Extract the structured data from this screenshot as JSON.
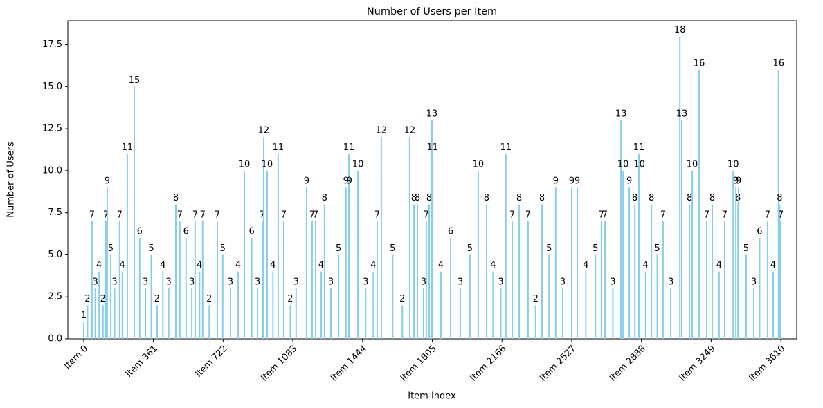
{
  "chart_data": {
    "type": "bar",
    "title": "Number of Users per Item",
    "xlabel": "Item Index",
    "ylabel": "Number of Users",
    "color": "#87ceeb",
    "x": [
      0,
      20,
      43,
      60,
      80,
      100,
      115,
      122,
      140,
      160,
      186,
      200,
      226,
      262,
      290,
      320,
      350,
      380,
      410,
      440,
      477,
      498,
      530,
      560,
      577,
      600,
      616,
      650,
      692,
      720,
      760,
      800,
      832,
      870,
      900,
      925,
      932,
      950,
      980,
      1007,
      1036,
      1070,
      1100,
      1154,
      1183,
      1201,
      1230,
      1247,
      1280,
      1320,
      1358,
      1373,
      1376,
      1420,
      1460,
      1500,
      1520,
      1541,
      1600,
      1650,
      1688,
      1710,
      1728,
      1760,
      1774,
      1789,
      1803,
      1806,
      1850,
      1900,
      1950,
      2000,
      2043,
      2086,
      2120,
      2160,
      2186,
      2219,
      2255,
      2301,
      2340,
      2373,
      2410,
      2444,
      2480,
      2527,
      2556,
      2600,
      2650,
      2681,
      2699,
      2740,
      2782,
      2793,
      2825,
      2854,
      2875,
      2877,
      2910,
      2940,
      2970,
      3000,
      3040,
      3087,
      3097,
      3137,
      3151,
      3187,
      3226,
      3255,
      3290,
      3319,
      3363,
      3377,
      3388,
      3391,
      3430,
      3470,
      3500,
      3541,
      3570,
      3598,
      3604,
      3610
    ],
    "values": [
      1,
      2,
      7,
      3,
      4,
      2,
      7,
      9,
      5,
      3,
      7,
      4,
      11,
      15,
      6,
      3,
      5,
      2,
      4,
      3,
      8,
      7,
      6,
      3,
      7,
      4,
      7,
      2,
      7,
      5,
      3,
      4,
      10,
      6,
      3,
      7,
      12,
      10,
      4,
      11,
      7,
      2,
      3,
      9,
      7,
      7,
      4,
      8,
      3,
      5,
      9,
      11,
      9,
      10,
      3,
      4,
      7,
      12,
      5,
      2,
      12,
      8,
      8,
      3,
      7,
      8,
      13,
      11,
      4,
      6,
      3,
      5,
      10,
      8,
      4,
      3,
      11,
      7,
      8,
      7,
      2,
      8,
      5,
      9,
      3,
      9,
      9,
      4,
      5,
      7,
      7,
      3,
      13,
      10,
      9,
      8,
      11,
      10,
      4,
      8,
      5,
      7,
      3,
      18,
      13,
      8,
      10,
      16,
      7,
      8,
      4,
      7,
      10,
      9,
      8,
      9,
      5,
      3,
      6,
      7,
      4,
      16,
      8,
      7
    ],
    "xlim": [
      -82,
      3692
    ],
    "ylim": [
      0,
      18.92
    ],
    "xticks": [
      {
        "value": 0,
        "label": "Item 0"
      },
      {
        "value": 361,
        "label": "Item 361"
      },
      {
        "value": 722,
        "label": "Item 722"
      },
      {
        "value": 1083,
        "label": "Item 1083"
      },
      {
        "value": 1444,
        "label": "Item 1444"
      },
      {
        "value": 1805,
        "label": "Item 1805"
      },
      {
        "value": 2166,
        "label": "Item 2166"
      },
      {
        "value": 2527,
        "label": "Item 2527"
      },
      {
        "value": 2888,
        "label": "Item 2888"
      },
      {
        "value": 3249,
        "label": "Item 3249"
      },
      {
        "value": 3610,
        "label": "Item 3610"
      }
    ],
    "yticks": [
      {
        "value": 0,
        "label": "0.0"
      },
      2.5,
      {
        "value": 5,
        "label": "5.0"
      },
      7.5,
      {
        "value": 10,
        "label": "10.0"
      },
      12.5,
      {
        "value": 15,
        "label": "15.0"
      },
      17.5
    ]
  }
}
